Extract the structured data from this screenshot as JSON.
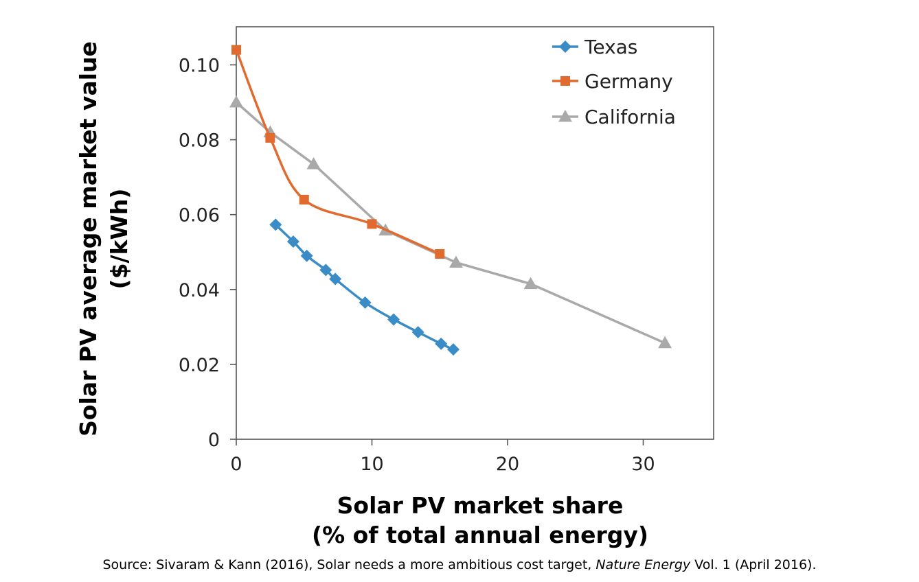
{
  "chart_data": {
    "type": "line",
    "title": "",
    "xlabel": [
      "Solar PV market share",
      "(% of total annual energy)"
    ],
    "ylabel": [
      "Solar PV average market value",
      "($/kWh)"
    ],
    "xlim": [
      0,
      35
    ],
    "ylim": [
      0,
      0.11
    ],
    "xticks": [
      0,
      10,
      20,
      30
    ],
    "xtick_labels": [
      "0",
      "10",
      "20",
      "30"
    ],
    "yticks": [
      0,
      0.02,
      0.04,
      0.06,
      0.08,
      0.1
    ],
    "ytick_labels": [
      "0",
      "0.02",
      "0.04",
      "0.06",
      "0.08",
      "0.10"
    ],
    "grid": false,
    "legend_position": "top-right",
    "series": [
      {
        "name": "Texas",
        "color": "#3a8cc7",
        "marker": "diamond",
        "smooth": true,
        "x": [
          2.9,
          4.2,
          5.2,
          6.6,
          7.3,
          9.5,
          11.6,
          13.4,
          15.1,
          16.0
        ],
        "y": [
          0.0573,
          0.0528,
          0.049,
          0.0452,
          0.0428,
          0.0365,
          0.032,
          0.0286,
          0.0255,
          0.024
        ]
      },
      {
        "name": "Germany",
        "color": "#e16a2f",
        "marker": "square",
        "smooth": true,
        "x": [
          0.0,
          2.5,
          5.0,
          10.0,
          15.0
        ],
        "y": [
          0.104,
          0.0805,
          0.064,
          0.0575,
          0.0495
        ]
      },
      {
        "name": "California",
        "color": "#a9a9a9",
        "marker": "triangle",
        "smooth": false,
        "x": [
          0.0,
          2.5,
          5.7,
          11.0,
          16.2,
          21.7,
          31.6
        ],
        "y": [
          0.09,
          0.082,
          0.0735,
          0.0558,
          0.0472,
          0.0415,
          0.0257
        ]
      }
    ]
  },
  "source": {
    "prefix": "Source: Sivaram & Kann (2016), Solar needs a more ambitious cost target, ",
    "journal": "Nature Energy",
    "suffix": " Vol. 1 (April 2016)."
  }
}
